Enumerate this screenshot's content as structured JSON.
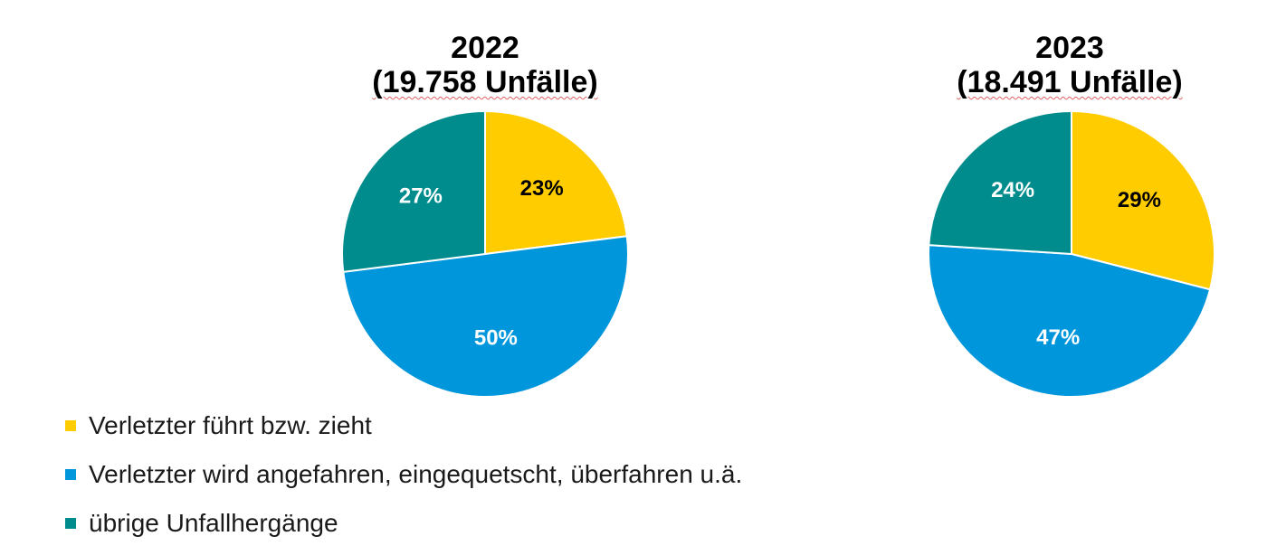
{
  "colors": {
    "yellow": "#FFCC00",
    "blue": "#0096DC",
    "teal": "#008C8C"
  },
  "legend": [
    {
      "label": "Verletzter führt bzw. zieht",
      "color": "#FFCC00"
    },
    {
      "label": "Verletzter wird angefahren, eingequetscht, überfahren u.ä.",
      "color": "#0096DC"
    },
    {
      "label": "übrige Unfallhergänge",
      "color": "#008C8C"
    }
  ],
  "chart_data": [
    {
      "type": "pie",
      "title": "2022",
      "subtitle": "(19.758 Unfälle)",
      "categories": [
        "Verletzter führt bzw. zieht",
        "Verletzter wird angefahren, eingequetscht, überfahren u.ä.",
        "übrige Unfallhergänge"
      ],
      "values": [
        23,
        50,
        27
      ],
      "labels": [
        "23%",
        "50%",
        "27%"
      ],
      "colors": [
        "#FFCC00",
        "#0096DC",
        "#008C8C"
      ],
      "label_colors": [
        "#000000",
        "#ffffff",
        "#ffffff"
      ]
    },
    {
      "type": "pie",
      "title": "2023",
      "subtitle": "(18.491 Unfälle)",
      "categories": [
        "Verletzter führt bzw. zieht",
        "Verletzter wird angefahren, eingequetscht, überfahren u.ä.",
        "übrige Unfallhergänge"
      ],
      "values": [
        29,
        47,
        24
      ],
      "labels": [
        "29%",
        "47%",
        "24%"
      ],
      "colors": [
        "#FFCC00",
        "#0096DC",
        "#008C8C"
      ],
      "label_colors": [
        "#000000",
        "#ffffff",
        "#ffffff"
      ]
    }
  ]
}
